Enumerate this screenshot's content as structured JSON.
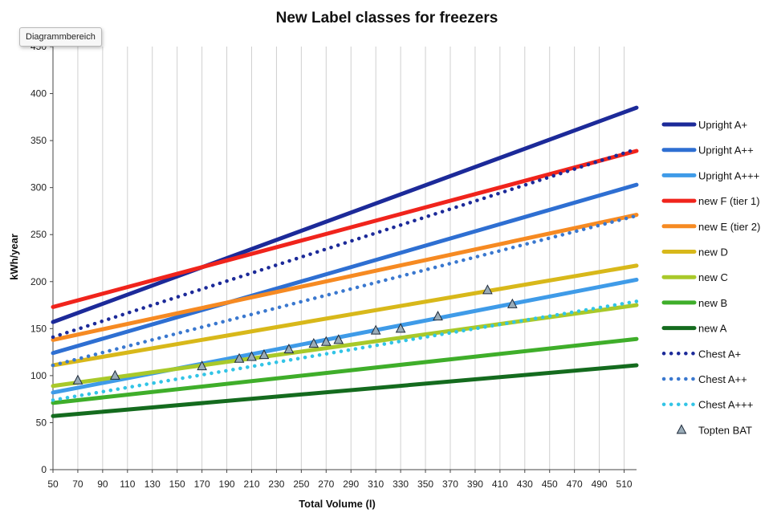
{
  "tooltip": "Diagrammbereich",
  "chart_data": {
    "type": "line",
    "title": "New Label classes for freezers",
    "xlabel": "Total Volume (l)",
    "ylabel": "kWh/year",
    "xlim": [
      50,
      520
    ],
    "ylim": [
      0,
      450
    ],
    "x_ticks": [
      50,
      70,
      90,
      110,
      130,
      150,
      170,
      190,
      210,
      230,
      250,
      270,
      290,
      310,
      330,
      350,
      370,
      390,
      410,
      430,
      450,
      470,
      490,
      510
    ],
    "y_ticks": [
      0,
      50,
      100,
      150,
      200,
      250,
      300,
      350,
      400,
      450
    ],
    "grid": "vertical",
    "legend_position": "right",
    "series": [
      {
        "name": "Upright A+",
        "color": "#1c2a99",
        "style": "solid",
        "x": [
          50,
          520
        ],
        "y": [
          157,
          385
        ]
      },
      {
        "name": "Upright A++",
        "color": "#2e6fd2",
        "style": "solid",
        "x": [
          50,
          520
        ],
        "y": [
          124,
          303
        ]
      },
      {
        "name": "Upright A+++",
        "color": "#3f9be8",
        "style": "solid",
        "x": [
          50,
          520
        ],
        "y": [
          82,
          202
        ]
      },
      {
        "name": "new F (tier 1)",
        "color": "#f0241c",
        "style": "solid",
        "x": [
          50,
          520
        ],
        "y": [
          173,
          339
        ]
      },
      {
        "name": "new E (tier 2)",
        "color": "#f68a22",
        "style": "solid",
        "x": [
          50,
          520
        ],
        "y": [
          138,
          271
        ]
      },
      {
        "name": "new D",
        "color": "#d8b81a",
        "style": "solid",
        "x": [
          50,
          520
        ],
        "y": [
          111,
          217
        ]
      },
      {
        "name": "new C",
        "color": "#a9c92a",
        "style": "solid",
        "x": [
          50,
          520
        ],
        "y": [
          89,
          175
        ]
      },
      {
        "name": "new B",
        "color": "#3fae2a",
        "style": "solid",
        "x": [
          50,
          520
        ],
        "y": [
          71,
          139
        ]
      },
      {
        "name": "new A",
        "color": "#146b1e",
        "style": "solid",
        "x": [
          50,
          520
        ],
        "y": [
          57,
          111
        ]
      },
      {
        "name": "Chest A+",
        "color": "#1c2a99",
        "style": "dotted",
        "x": [
          50,
          520
        ],
        "y": [
          141,
          341
        ]
      },
      {
        "name": "Chest A++",
        "color": "#3a78cf",
        "style": "dotted",
        "x": [
          50,
          520
        ],
        "y": [
          111,
          270
        ]
      },
      {
        "name": "Chest A+++",
        "color": "#32c4e6",
        "style": "dotted",
        "x": [
          50,
          520
        ],
        "y": [
          74,
          179
        ]
      },
      {
        "name": "Topten BAT",
        "color": "#9aacb8",
        "style": "marker",
        "x": [
          70,
          100,
          170,
          200,
          210,
          220,
          240,
          260,
          270,
          280,
          310,
          330,
          360,
          400,
          420
        ],
        "y": [
          95,
          100,
          110,
          118,
          120,
          122,
          128,
          134,
          136,
          138,
          148,
          150,
          163,
          191,
          176
        ]
      }
    ]
  }
}
